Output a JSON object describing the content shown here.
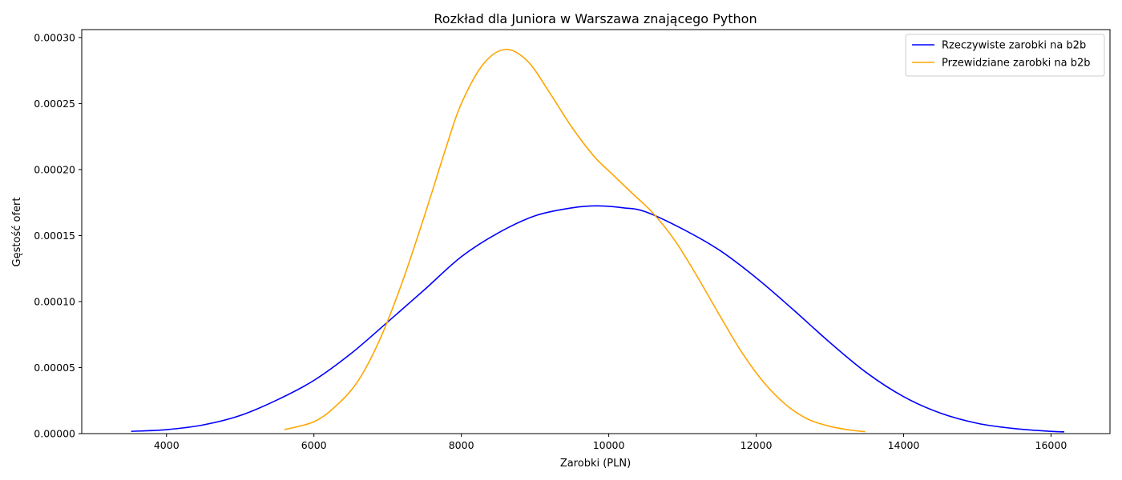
{
  "chart_data": {
    "type": "line",
    "title": "Rozkład dla Juniora w Warszawa znającego Python",
    "xlabel": "Zarobki (PLN)",
    "ylabel": "Gęstość ofert",
    "xlim": [
      2850,
      16800
    ],
    "ylim": [
      0,
      0.000306
    ],
    "x_ticks": [
      4000,
      6000,
      8000,
      10000,
      12000,
      14000,
      16000
    ],
    "y_ticks": [
      0.0,
      5e-05,
      0.0001,
      0.00015,
      0.0002,
      0.00025,
      0.0003
    ],
    "y_tick_labels": [
      "0.00000",
      "0.00005",
      "0.00010",
      "0.00015",
      "0.00020",
      "0.00025",
      "0.00030"
    ],
    "grid": false,
    "legend_position": "top-right",
    "series": [
      {
        "name": "Rzeczywiste zarobki na b2b",
        "color": "#0000ff",
        "x": [
          3520,
          4000,
          4500,
          5000,
          5500,
          6000,
          6500,
          7000,
          7500,
          8000,
          8500,
          9000,
          9500,
          9850,
          10200,
          10500,
          11000,
          11500,
          12000,
          12500,
          13000,
          13500,
          14000,
          14500,
          15000,
          15500,
          16000,
          16180
        ],
        "y": [
          1.7e-06,
          3e-06,
          6.6e-06,
          1.37e-05,
          2.55e-05,
          4.03e-05,
          6.05e-05,
          8.45e-05,
          0.000109,
          0.000134,
          0.000152,
          0.000165,
          0.000171,
          0.0001725,
          0.000171,
          0.000168,
          0.000155,
          0.000139,
          0.000118,
          9.4e-05,
          6.9e-05,
          4.6e-05,
          2.8e-05,
          1.55e-05,
          7.8e-06,
          3.8e-06,
          1.7e-06,
          1.3e-06
        ]
      },
      {
        "name": "Przewidziane zarobki na b2b",
        "color": "#ffa500",
        "x": [
          5600,
          6000,
          6300,
          6600,
          6900,
          7200,
          7500,
          7800,
          8000,
          8300,
          8600,
          8900,
          9200,
          9500,
          9800,
          10000,
          10300,
          10600,
          10900,
          11200,
          11500,
          11800,
          12100,
          12400,
          12700,
          13000,
          13300,
          13480
        ],
        "y": [
          3e-06,
          9e-06,
          2.1e-05,
          4e-05,
          7.2e-05,
          0.000115,
          0.000165,
          0.000218,
          0.00025,
          0.00028,
          0.000291,
          0.000282,
          0.000258,
          0.000232,
          0.00021,
          0.000199,
          0.000183,
          0.000167,
          0.000146,
          0.000119,
          9e-05,
          6.2e-05,
          3.9e-05,
          2.2e-05,
          1.1e-05,
          5.5e-06,
          2.5e-06,
          1.5e-06
        ]
      }
    ]
  }
}
